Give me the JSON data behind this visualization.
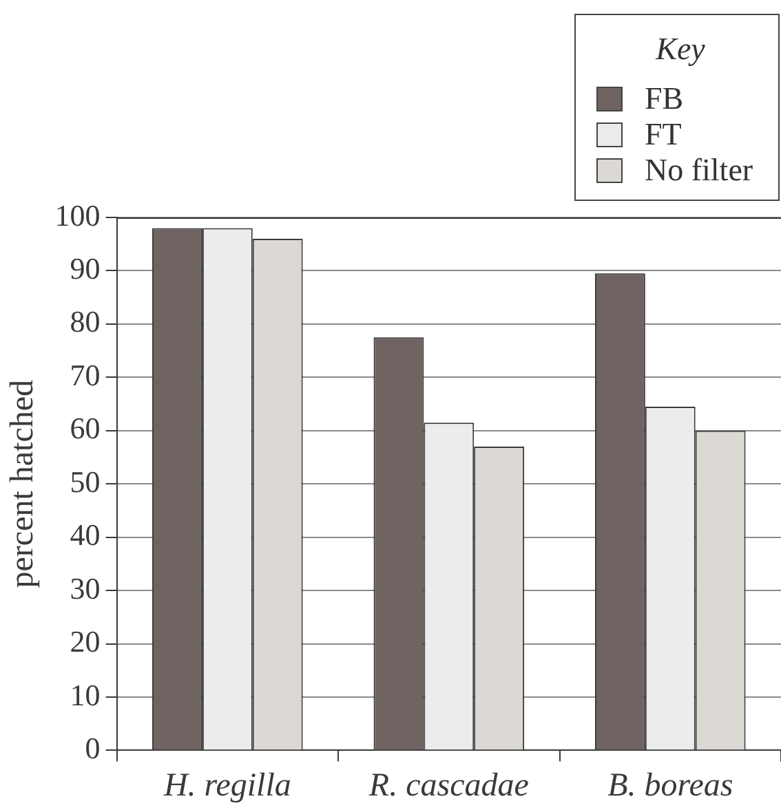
{
  "chart_data": {
    "type": "bar",
    "ylabel": "percent hatched",
    "legend_title": "Key",
    "categories": [
      "H. regilla",
      "R. cascadae",
      "B. boreas"
    ],
    "series": [
      {
        "name": "FB",
        "color": "#6f6462",
        "values": [
          98,
          77.5,
          89.5
        ]
      },
      {
        "name": "FT",
        "color": "#ececec",
        "values": [
          98,
          61.5,
          64.5
        ]
      },
      {
        "name": "No filter",
        "color": "#dcd8d4",
        "values": [
          96,
          57,
          60
        ]
      }
    ],
    "ylim": [
      0,
      100
    ],
    "yticks": [
      0,
      10,
      20,
      30,
      40,
      50,
      60,
      70,
      80,
      90,
      100
    ],
    "grid": "y",
    "legend": "top right"
  }
}
